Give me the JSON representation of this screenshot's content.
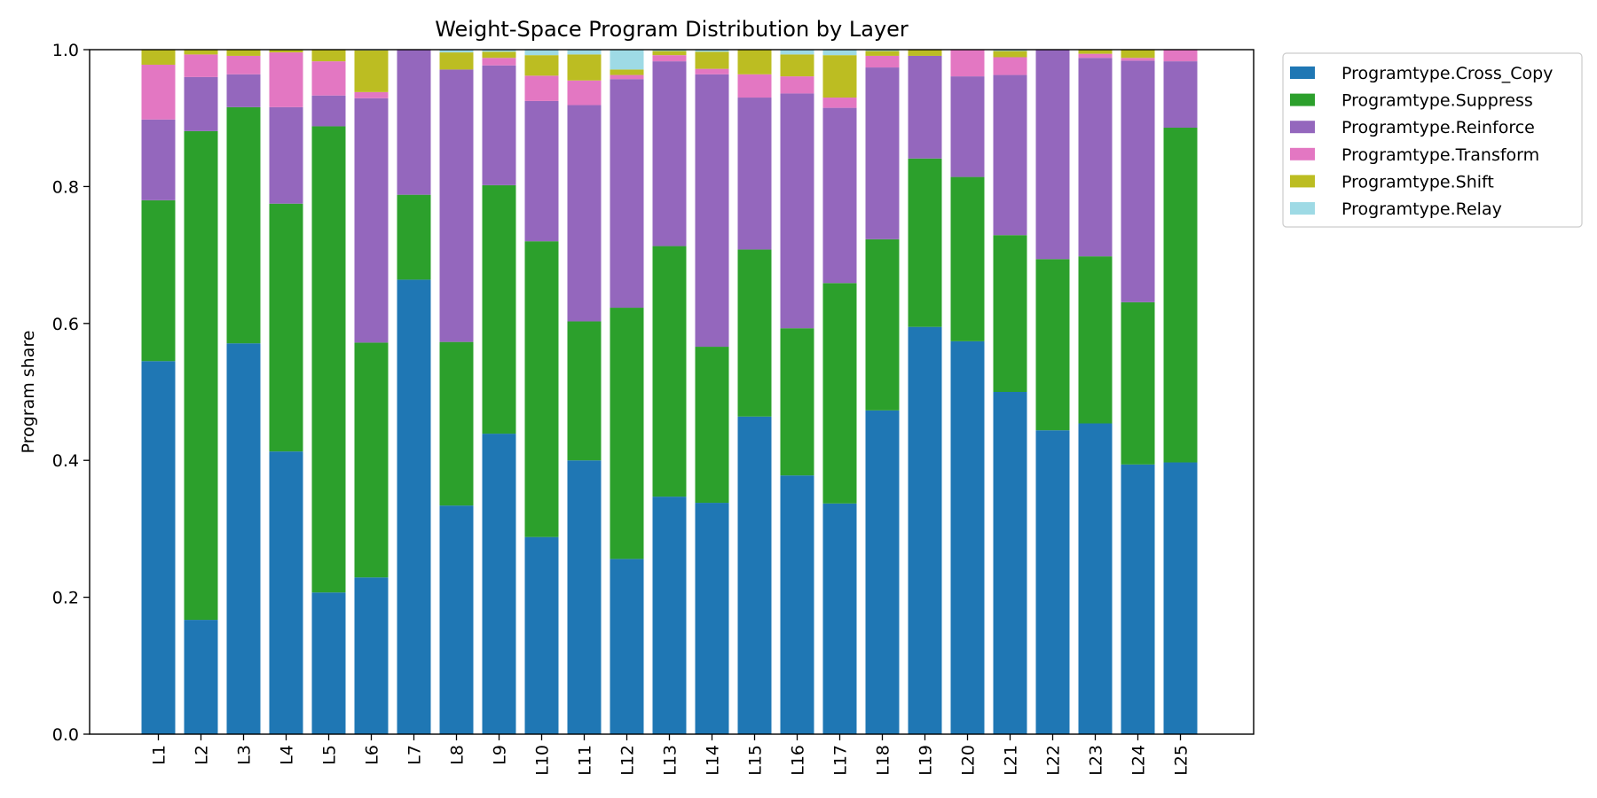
{
  "chart_data": {
    "type": "bar",
    "stacked": true,
    "title": "Weight-Space Program Distribution by Layer",
    "xlabel": "",
    "ylabel": "Program share",
    "ylim": [
      0,
      1.0
    ],
    "yticks": [
      "0.0",
      "0.2",
      "0.4",
      "0.6",
      "0.8",
      "1.0"
    ],
    "grid": false,
    "legend_position": "outside-top-right",
    "categories": [
      "L1",
      "L2",
      "L3",
      "L4",
      "L5",
      "L6",
      "L7",
      "L8",
      "L9",
      "L10",
      "L11",
      "L12",
      "L13",
      "L14",
      "L15",
      "L16",
      "L17",
      "L18",
      "L19",
      "L20",
      "L21",
      "L22",
      "L23",
      "L24",
      "L25"
    ],
    "series": [
      {
        "name": "Programtype.Cross_Copy",
        "color": "#1f77b4",
        "values": [
          0.545,
          0.167,
          0.571,
          0.413,
          0.207,
          0.229,
          0.664,
          0.334,
          0.439,
          0.288,
          0.4,
          0.256,
          0.347,
          0.338,
          0.464,
          0.378,
          0.337,
          0.473,
          0.595,
          0.574,
          0.5,
          0.444,
          0.454,
          0.394,
          0.397
        ]
      },
      {
        "name": "Programtype.Suppress",
        "color": "#2ca02c",
        "values": [
          0.235,
          0.714,
          0.345,
          0.362,
          0.681,
          0.343,
          0.124,
          0.239,
          0.363,
          0.432,
          0.203,
          0.367,
          0.366,
          0.228,
          0.244,
          0.215,
          0.322,
          0.25,
          0.246,
          0.24,
          0.229,
          0.25,
          0.244,
          0.237,
          0.489
        ]
      },
      {
        "name": "Programtype.Reinforce",
        "color": "#9467bd",
        "values": [
          0.118,
          0.079,
          0.048,
          0.141,
          0.045,
          0.357,
          0.212,
          0.398,
          0.175,
          0.205,
          0.316,
          0.334,
          0.27,
          0.398,
          0.222,
          0.343,
          0.256,
          0.251,
          0.15,
          0.147,
          0.234,
          0.306,
          0.29,
          0.353,
          0.097
        ]
      },
      {
        "name": "Programtype.Transform",
        "color": "#e377c2",
        "values": [
          0.08,
          0.033,
          0.027,
          0.08,
          0.05,
          0.009,
          0.0,
          0.0,
          0.011,
          0.037,
          0.036,
          0.006,
          0.009,
          0.008,
          0.034,
          0.025,
          0.015,
          0.017,
          0.0,
          0.041,
          0.026,
          0.0,
          0.006,
          0.004,
          0.017
        ]
      },
      {
        "name": "Programtype.Shift",
        "color": "#bcbd22",
        "values": [
          0.022,
          0.007,
          0.009,
          0.004,
          0.017,
          0.061,
          0.0,
          0.025,
          0.009,
          0.03,
          0.038,
          0.008,
          0.006,
          0.025,
          0.036,
          0.032,
          0.062,
          0.007,
          0.009,
          0.0,
          0.009,
          0.0,
          0.006,
          0.012,
          0.0
        ]
      },
      {
        "name": "Programtype.Relay",
        "color": "#9edae5",
        "values": [
          0.0,
          0.0,
          0.0,
          0.0,
          0.0,
          0.001,
          0.0,
          0.004,
          0.003,
          0.008,
          0.007,
          0.029,
          0.002,
          0.003,
          0.0,
          0.007,
          0.008,
          0.002,
          0.0,
          0.0,
          0.002,
          0.0,
          0.0,
          0.0,
          0.0
        ]
      }
    ]
  }
}
